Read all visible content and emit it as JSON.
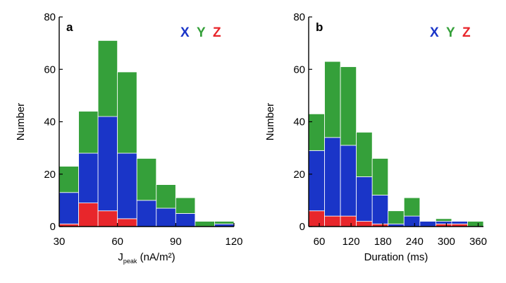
{
  "chart_data": [
    {
      "type": "bar",
      "panel_label": "a",
      "bin_edges": [
        30,
        40,
        50,
        60,
        70,
        80,
        90,
        100,
        110,
        120
      ],
      "series": [
        {
          "name": "Z",
          "color": "#e8262b",
          "values": [
            1,
            9,
            6,
            3,
            0,
            0,
            0,
            0,
            0
          ]
        },
        {
          "name": "X",
          "color": "#1a35c8",
          "values": [
            12,
            19,
            36,
            25,
            10,
            7,
            5,
            0,
            1
          ]
        },
        {
          "name": "Y",
          "color": "#35a03a",
          "values": [
            10,
            16,
            29,
            31,
            16,
            9,
            6,
            2,
            1
          ]
        }
      ],
      "xlabel_main": "J",
      "xlabel_sub": "peak",
      "xlabel_rest": " (nA/m²)",
      "ylabel": "Number",
      "xlim": [
        30,
        120
      ],
      "ylim": [
        0,
        80
      ],
      "xticks": [
        30,
        60,
        90,
        120
      ],
      "yticks": [
        0,
        20,
        40,
        60,
        80
      ],
      "legend": {
        "placement": "top-right",
        "entries": [
          "X",
          "Y",
          "Z"
        ]
      }
    },
    {
      "type": "bar",
      "panel_label": "b",
      "bin_edges": [
        40,
        70,
        100,
        130,
        160,
        190,
        220,
        250,
        280,
        310,
        340,
        370
      ],
      "series": [
        {
          "name": "Z",
          "color": "#e8262b",
          "values": [
            6,
            4,
            4,
            2,
            1,
            0,
            0,
            0,
            1,
            1,
            0
          ]
        },
        {
          "name": "X",
          "color": "#1a35c8",
          "values": [
            23,
            30,
            27,
            17,
            11,
            1,
            4,
            2,
            1,
            1,
            0
          ]
        },
        {
          "name": "Y",
          "color": "#35a03a",
          "values": [
            14,
            29,
            30,
            17,
            14,
            5,
            7,
            0,
            1,
            0,
            2
          ]
        }
      ],
      "xlabel": "Duration (ms)",
      "ylabel": "Number",
      "xlim": [
        40,
        370
      ],
      "ylim": [
        0,
        80
      ],
      "xticks": [
        60,
        120,
        180,
        240,
        300,
        360
      ],
      "yticks": [
        0,
        20,
        40,
        60,
        80
      ],
      "legend": {
        "placement": "top-right",
        "entries": [
          "X",
          "Y",
          "Z"
        ]
      }
    }
  ]
}
